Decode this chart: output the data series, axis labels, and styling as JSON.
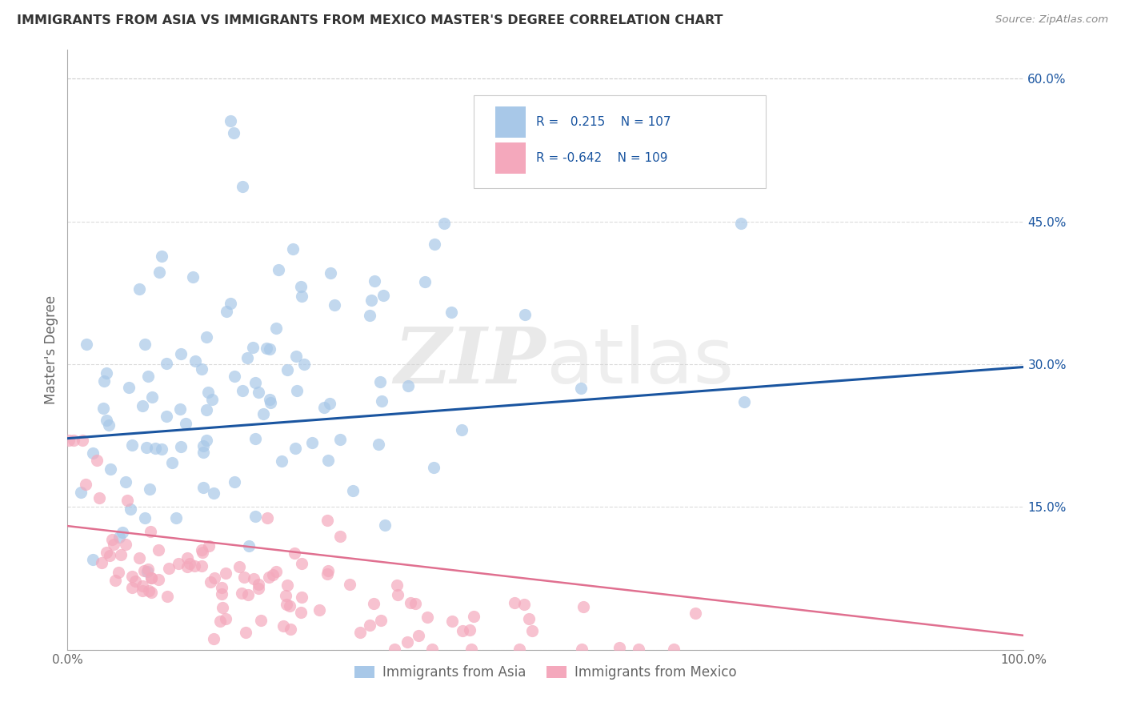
{
  "title": "IMMIGRANTS FROM ASIA VS IMMIGRANTS FROM MEXICO MASTER'S DEGREE CORRELATION CHART",
  "source": "Source: ZipAtlas.com",
  "ylabel": "Master's Degree",
  "asia_color": "#a8c8e8",
  "mexico_color": "#f4a8bc",
  "asia_line_color": "#1a55a0",
  "mexico_line_color": "#e07090",
  "legend_text_color": "#1a55a0",
  "watermark_color": "#d0d0d0",
  "bg_color": "#ffffff",
  "grid_color": "#cccccc",
  "title_color": "#333333",
  "axis_label_color": "#1a55a0",
  "tick_color": "#666666",
  "asia_intercept": 0.222,
  "asia_slope": 0.075,
  "mexico_intercept": 0.13,
  "mexico_slope": -0.115
}
